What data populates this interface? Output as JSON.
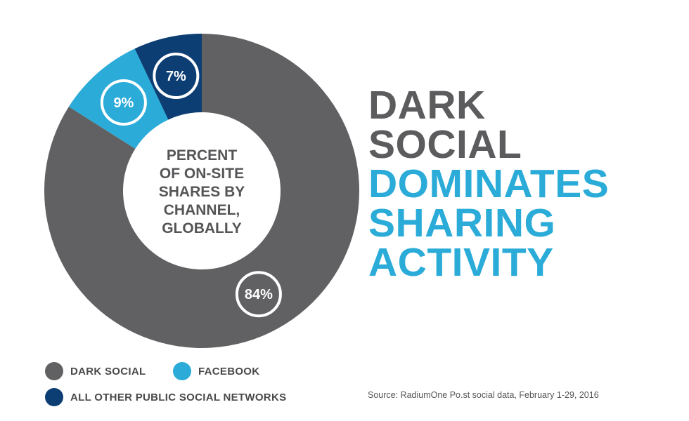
{
  "chart_data": {
    "type": "pie",
    "center_label_lines": [
      "PERCENT",
      "OF ON-SITE",
      "SHARES BY",
      "CHANNEL,",
      "GLOBALLY"
    ],
    "slices": [
      {
        "name": "DARK SOCIAL",
        "value": 84,
        "label": "84%",
        "color": "#616163"
      },
      {
        "name": "FACEBOOK",
        "value": 9,
        "label": "9%",
        "color": "#2aabd8"
      },
      {
        "name": "ALL OTHER PUBLIC SOCIAL NETWORKS",
        "value": 7,
        "label": "7%",
        "color": "#0c3e73"
      }
    ]
  },
  "headline": {
    "line1": "DARK",
    "line2": "SOCIAL",
    "line3": "DOMINATES",
    "line4": "SHARING",
    "line5": "ACTIVITY"
  },
  "legend": {
    "dark_social": "DARK SOCIAL",
    "facebook": "FACEBOOK",
    "other": "ALL OTHER PUBLIC SOCIAL NETWORKS"
  },
  "source": "Source: RadiumOne Po.st social data, February 1-29, 2016"
}
